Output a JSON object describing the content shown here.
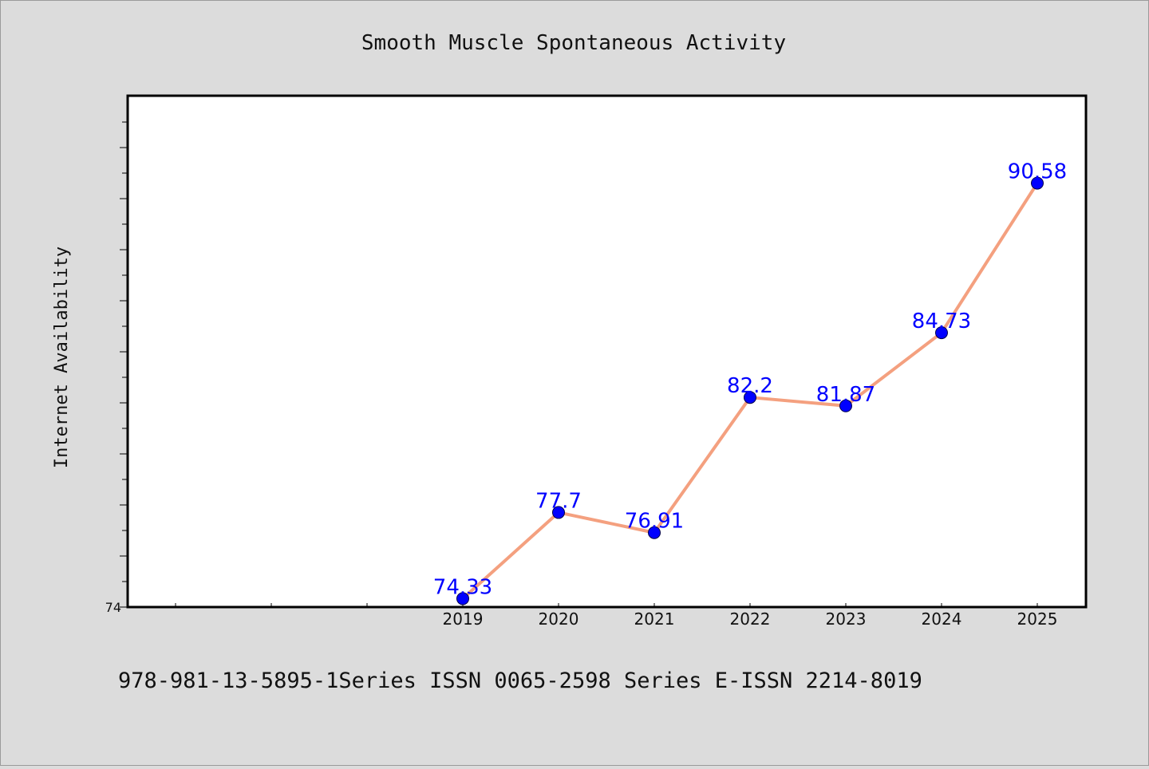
{
  "chart_data": {
    "type": "line",
    "title": "Smooth Muscle Spontaneous Activity",
    "xlabel": "",
    "ylabel": "Internet Availability",
    "categories": [
      "2019",
      "2020",
      "2021",
      "2022",
      "2023",
      "2024",
      "2025"
    ],
    "series": [
      {
        "values": [
          74.33,
          77.7,
          76.91,
          82.2,
          81.87,
          84.73,
          90.58
        ],
        "labels": [
          "74.33",
          "77.7",
          "76.91",
          "82.2",
          "81.87",
          "84.73",
          "90.58"
        ],
        "line_color": "#f4a07f",
        "marker_color": "#0000ff"
      }
    ],
    "yticks_labeled": [
      "74"
    ],
    "ylim": [
      74,
      94
    ],
    "grid": false,
    "legend": "none"
  },
  "footer_text": "978-981-13-5895-1Series ISSN 0065-2598 Series E-ISSN 2214-8019",
  "colors": {
    "background": "#dcdcdc",
    "plot_area": "#ffffff",
    "line": "#f4a07f",
    "marker": "#0000ff",
    "data_label": "#0000ff"
  }
}
